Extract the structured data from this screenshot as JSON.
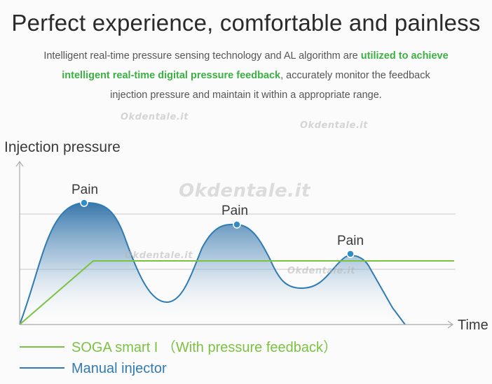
{
  "title": "Perfect experience, comfortable and painless",
  "description": {
    "part1": "Intelligent real-time pressure sensing technology and AL algorithm are ",
    "highlight": "utilized to achieve intelligent real-time digital pressure feedback",
    "part2": ", accurately monitor the feedback injection pressure and maintain it within a appropriate range."
  },
  "watermark": "Okdentale.it",
  "colors": {
    "soga": "#7cc242",
    "manual": "#2f7bb3",
    "highlight": "#3cb043",
    "pain_dot": "#2f8cc7"
  },
  "chart_data": {
    "type": "line",
    "ylabel": "Injection pressure",
    "xlabel": "Time",
    "annotations": [
      "Pain",
      "Pain",
      "Pain"
    ],
    "series": [
      {
        "name": "SOGA smart I （With pressure feedback）"
      },
      {
        "name": "Manual injector"
      }
    ]
  },
  "legend": [
    {
      "label": "SOGA smart I （With pressure feedback）",
      "color": "#7cc242"
    },
    {
      "label": "Manual injector",
      "color": "#2f7bb3"
    }
  ]
}
